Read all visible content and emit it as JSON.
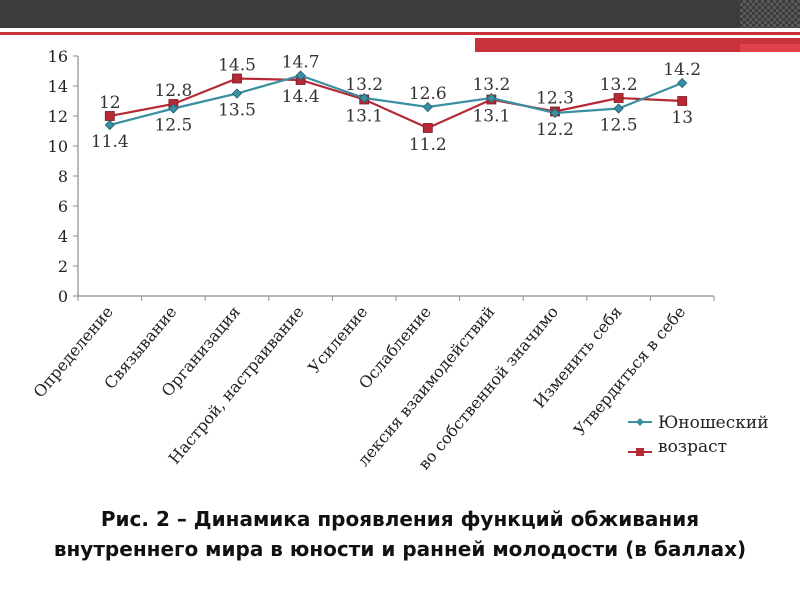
{
  "caption": {
    "line1": "Рис. 2 – Динамика проявления функций обживания",
    "line2": "внутреннего мира в юности и ранней молодости (в баллах)"
  },
  "chart_data": {
    "type": "line",
    "categories": [
      "Определение",
      "Связывание",
      "Организация",
      "Настрой, настраивание",
      "Усиление",
      "Ослабление",
      "Рефлексия взаимодействий",
      "Чувство собственной значимости",
      "Изменить себя",
      "Утвердиться в себе"
    ],
    "category_labels_visible": [
      "Определение",
      "Связывание",
      "Организация",
      "Настрой, настраивание",
      "Усиление",
      "Ослабление",
      "лексия взаимодействий",
      "во собственной значимо",
      "Изменить себя",
      "Утвердиться в себе"
    ],
    "series": [
      {
        "name": "Юношеский возраст",
        "color": "#3a8fa0",
        "marker": "diamond",
        "values": [
          11.4,
          12.5,
          13.5,
          14.7,
          13.2,
          12.6,
          13.2,
          12.2,
          12.5,
          14.2
        ]
      },
      {
        "name": "",
        "color": "#b52a35",
        "marker": "square",
        "values": [
          12,
          12.8,
          14.5,
          14.4,
          13.1,
          11.2,
          13.1,
          12.3,
          13.2,
          13
        ]
      }
    ],
    "data_labels": {
      "s1": [
        "11.4",
        "12.5",
        "13.5",
        "14.7",
        "13.2",
        "12.6",
        "13.2",
        "12.2",
        "12.5",
        "14.2"
      ],
      "s2": [
        "12",
        "12.8",
        "14.5",
        "14.4",
        "13.1",
        "11.2",
        "13.1",
        "12.3",
        "13.2",
        "13"
      ]
    },
    "ylim": [
      0,
      16
    ],
    "yticks": [
      "0",
      "2",
      "4",
      "6",
      "8",
      "10",
      "12",
      "14",
      "16"
    ],
    "grid": false,
    "legend_position": "right-bottom",
    "legend": {
      "line1": "Юношеский",
      "line2": "возраст"
    }
  }
}
